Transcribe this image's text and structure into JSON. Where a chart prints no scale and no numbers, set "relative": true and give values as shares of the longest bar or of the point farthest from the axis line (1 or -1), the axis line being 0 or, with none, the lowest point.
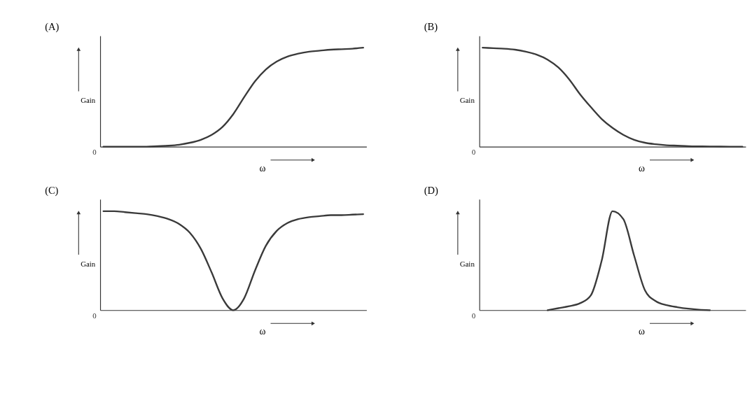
{
  "chart_data": [
    {
      "type": "line",
      "title": "(A)",
      "ylabel": "Gain",
      "xlabel": "ω",
      "relative": true,
      "annotations": [
        "0"
      ],
      "categories": [
        null,
        null,
        null,
        null,
        null,
        null,
        null,
        null,
        null,
        null,
        null,
        null,
        null,
        null,
        null,
        null,
        null,
        null,
        null,
        null,
        null,
        null,
        null,
        null,
        null
      ],
      "series": [
        {
          "color": "#3a3a3a",
          "values": [
            0,
            0,
            0,
            0,
            0,
            0.005,
            0.01,
            0.02,
            0.04,
            0.07,
            0.12,
            0.2,
            0.33,
            0.5,
            0.66,
            0.78,
            0.86,
            0.91,
            0.94,
            0.96,
            0.97,
            0.98,
            0.985,
            0.99,
            1
          ]
        }
      ]
    },
    {
      "type": "line",
      "title": "(B)",
      "ylabel": "Gain",
      "xlabel": "ω",
      "relative": true,
      "annotations": [
        "0"
      ],
      "categories": [
        null,
        null,
        null,
        null,
        null,
        null,
        null,
        null,
        null,
        null,
        null,
        null,
        null,
        null,
        null,
        null,
        null,
        null,
        null,
        null,
        null,
        null,
        null,
        null,
        null
      ],
      "series": [
        {
          "color": "#3a3a3a",
          "values": [
            1,
            0.995,
            0.99,
            0.98,
            0.96,
            0.93,
            0.88,
            0.8,
            0.68,
            0.53,
            0.4,
            0.28,
            0.19,
            0.12,
            0.07,
            0.04,
            0.025,
            0.015,
            0.01,
            0.005,
            0.003,
            0.002,
            0.001,
            0.0005,
            0
          ]
        }
      ]
    },
    {
      "type": "line",
      "title": "(C)",
      "ylabel": "Gain",
      "xlabel": "ω",
      "relative": true,
      "annotations": [
        "0"
      ],
      "categories": [
        null,
        null,
        null,
        null,
        null,
        null,
        null,
        null,
        null,
        null,
        null,
        null,
        null,
        null,
        null,
        null,
        null,
        null,
        null,
        null,
        null,
        null,
        null,
        null,
        null
      ],
      "series": [
        {
          "color": "#3a3a3a",
          "values": [
            1,
            1,
            0.99,
            0.98,
            0.97,
            0.95,
            0.92,
            0.87,
            0.78,
            0.62,
            0.38,
            0.12,
            0,
            0.12,
            0.4,
            0.65,
            0.8,
            0.88,
            0.92,
            0.94,
            0.95,
            0.96,
            0.96,
            0.965,
            0.97
          ]
        }
      ]
    },
    {
      "type": "line",
      "title": "(D)",
      "ylabel": "Gain",
      "xlabel": "ω",
      "relative": true,
      "annotations": [
        "0"
      ],
      "categories": [
        null,
        null,
        null,
        null,
        null,
        null,
        null,
        null,
        null,
        null,
        null,
        null,
        null,
        null,
        null,
        null,
        null,
        null,
        null,
        null,
        null,
        null,
        null,
        null,
        null
      ],
      "series": [
        {
          "color": "#3a3a3a",
          "values": [
            null,
            null,
            null,
            null,
            null,
            null,
            0,
            0.02,
            0.04,
            0.07,
            0.15,
            0.5,
            1,
            0.92,
            0.55,
            0.2,
            0.09,
            0.05,
            0.03,
            0.015,
            0.005,
            0,
            null,
            null,
            null
          ]
        }
      ]
    }
  ]
}
